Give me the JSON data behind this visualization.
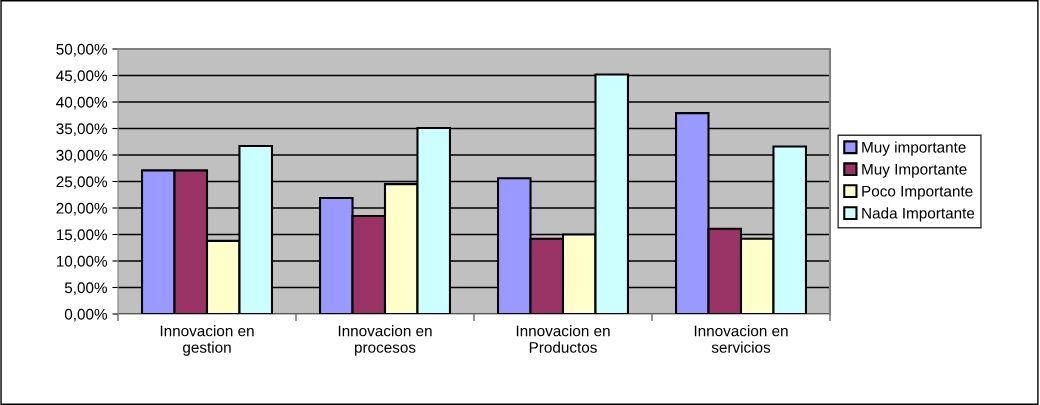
{
  "chart_data": {
    "type": "bar",
    "categories": [
      "Innovacion en\ngestion",
      "Innovacion en\nprocesos",
      "Innovacion en\nProductos",
      "Innovacion en\nservicios"
    ],
    "series": [
      {
        "name": "Muy importante",
        "color": "#9999ff",
        "values": [
          27.1,
          21.9,
          25.6,
          37.9
        ]
      },
      {
        "name": "Muy Importante",
        "color": "#993366",
        "values": [
          27.1,
          18.5,
          14.2,
          16.1
        ]
      },
      {
        "name": "Poco Importante",
        "color": "#ffffcc",
        "values": [
          13.8,
          24.5,
          15.0,
          14.2
        ]
      },
      {
        "name": "Nada Importante",
        "color": "#ccffff",
        "values": [
          31.7,
          35.1,
          45.2,
          31.6
        ]
      }
    ],
    "ylim": [
      0,
      50
    ],
    "yticks": [
      {
        "value": 0,
        "label": "0,00%"
      },
      {
        "value": 5,
        "label": "5,00%"
      },
      {
        "value": 10,
        "label": "10,00%"
      },
      {
        "value": 15,
        "label": "15,00%"
      },
      {
        "value": 20,
        "label": "20,00%"
      },
      {
        "value": 25,
        "label": "25,00%"
      },
      {
        "value": 30,
        "label": "30,00%"
      },
      {
        "value": 35,
        "label": "35,00%"
      },
      {
        "value": 40,
        "label": "40,00%"
      },
      {
        "value": 45,
        "label": "45,00%"
      },
      {
        "value": 50,
        "label": "50,00%"
      }
    ],
    "grid": "y",
    "legend": "right"
  }
}
